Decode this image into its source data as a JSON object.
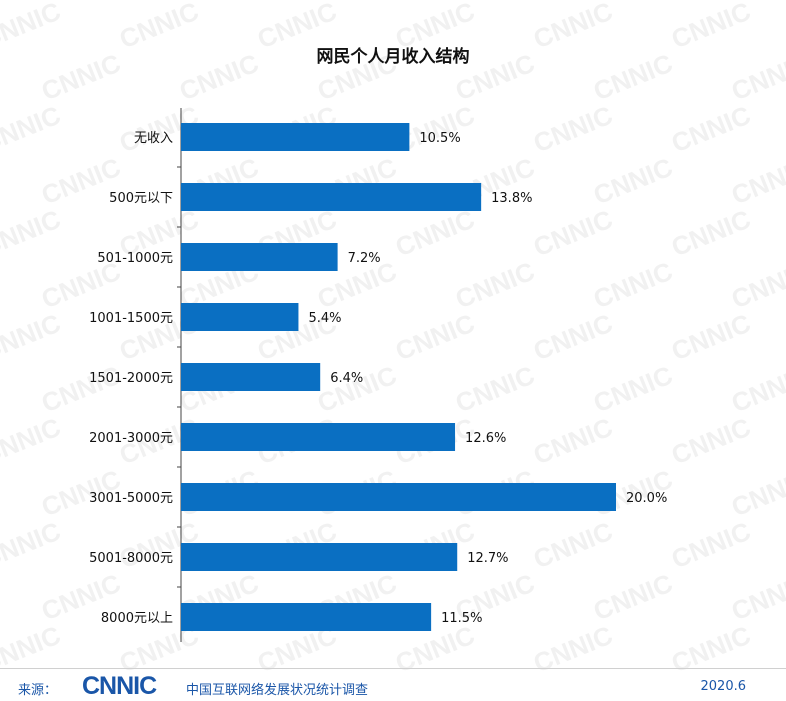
{
  "watermark_text": "CNNIC",
  "chart_data": {
    "type": "bar",
    "orientation": "horizontal",
    "title": "网民个人月收入结构",
    "categories": [
      "无收入",
      "500元以下",
      "501-1000元",
      "1001-1500元",
      "1501-2000元",
      "2001-3000元",
      "3001-5000元",
      "5001-8000元",
      "8000元以上"
    ],
    "values": [
      10.5,
      13.8,
      7.2,
      5.4,
      6.4,
      12.6,
      20.0,
      12.7,
      11.5
    ],
    "value_labels": [
      "10.5%",
      "13.8%",
      "7.2%",
      "5.4%",
      "6.4%",
      "12.6%",
      "20.0%",
      "12.7%",
      "11.5%"
    ],
    "xlim": [
      0,
      20
    ],
    "xlabel": "",
    "ylabel": "",
    "grid": false,
    "legend": "none",
    "bar_color": "#0a6fc2"
  },
  "footer": {
    "source_label": "来源：",
    "logo_text": "CNNIC",
    "org_name": "中国互联网络发展状况统计调查",
    "date": "2020.6"
  }
}
